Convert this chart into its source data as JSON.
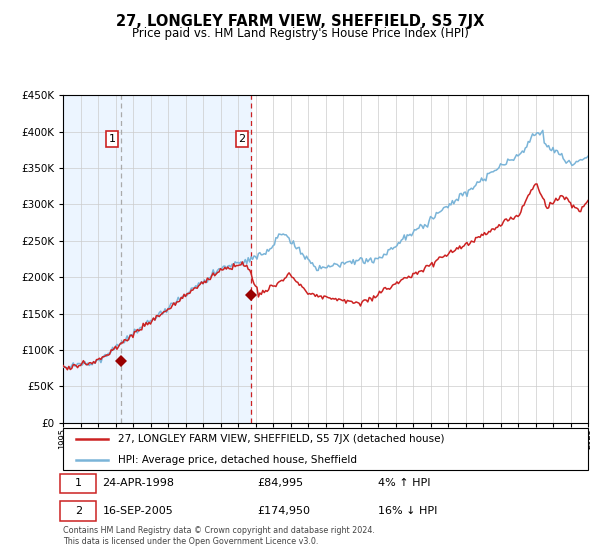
{
  "title": "27, LONGLEY FARM VIEW, SHEFFIELD, S5 7JX",
  "subtitle": "Price paid vs. HM Land Registry's House Price Index (HPI)",
  "legend_line1": "27, LONGLEY FARM VIEW, SHEFFIELD, S5 7JX (detached house)",
  "legend_line2": "HPI: Average price, detached house, Sheffield",
  "transaction1_date": "24-APR-1998",
  "transaction1_price": "£84,995",
  "transaction1_hpi": "4% ↑ HPI",
  "transaction2_date": "16-SEP-2005",
  "transaction2_price": "£174,950",
  "transaction2_hpi": "16% ↓ HPI",
  "footer": "Contains HM Land Registry data © Crown copyright and database right 2024.\nThis data is licensed under the Open Government Licence v3.0.",
  "hpi_color": "#7ab4d8",
  "price_color": "#cc2222",
  "marker_color": "#990000",
  "vline1_color": "#aaaaaa",
  "vline2_color": "#cc2222",
  "background_shade": "#ddeeff",
  "ylim": [
    0,
    450000
  ],
  "yticks": [
    0,
    50000,
    100000,
    150000,
    200000,
    250000,
    300000,
    350000,
    400000,
    450000
  ],
  "transaction1_year": 1998.3,
  "transaction1_value": 84995,
  "transaction2_year": 2005.72,
  "transaction2_value": 174950,
  "xmin": 1995,
  "xmax": 2025
}
